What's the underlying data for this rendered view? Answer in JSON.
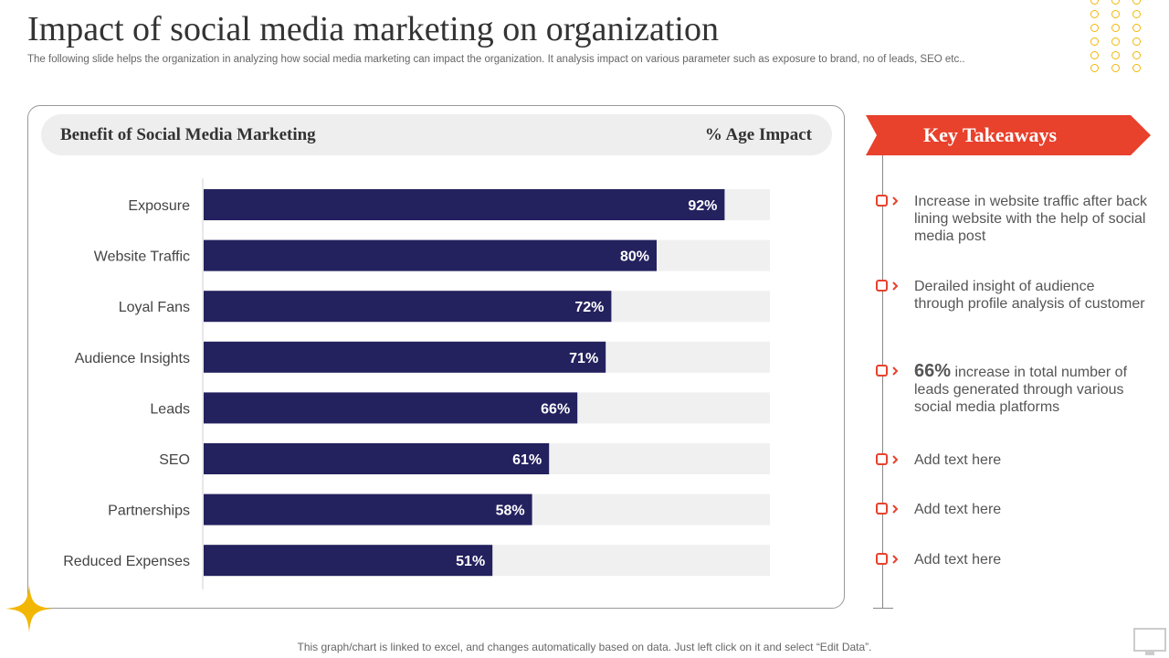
{
  "header": {
    "title": "Impact of social media marketing on organization",
    "subtitle": "The following slide helps the organization in analyzing how social media marketing can impact the organization. It analysis impact on various parameter such as exposure to brand, no of leads, SEO etc.."
  },
  "chart_header": {
    "left_label": "Benefit of Social Media Marketing",
    "right_label": "% Age Impact"
  },
  "chart_data": {
    "type": "bar",
    "orientation": "horizontal",
    "categories": [
      "Exposure",
      "Website Traffic",
      "Loyal Fans",
      "Audience Insights",
      "Leads",
      "SEO",
      "Partnerships",
      "Reduced Expenses"
    ],
    "values": [
      92,
      80,
      72,
      71,
      66,
      61,
      58,
      51
    ],
    "value_labels": [
      "92%",
      "80%",
      "72%",
      "71%",
      "66%",
      "61%",
      "58%",
      "51%"
    ],
    "xlim": [
      0,
      100
    ],
    "colors": {
      "bar": "#23215e",
      "track": "#f0f0f0",
      "label": "#ffffff"
    }
  },
  "takeaways": {
    "title": "Key Takeaways",
    "items": [
      {
        "text": "Increase  in website traffic after back lining website with the help of social media post"
      },
      {
        "text": "Derailed insight of audience through profile analysis of customer"
      },
      {
        "highlight": "66%",
        "text": " increase in total number of leads generated through various social media platforms"
      },
      {
        "text": "Add text here"
      },
      {
        "text": "Add text here"
      },
      {
        "text": "Add text here"
      }
    ]
  },
  "footer": {
    "note": "This graph/chart is linked to excel,  and changes automatically based on data. Just left click on it and select “Edit Data”."
  },
  "colors": {
    "accent_red": "#e8412c",
    "accent_yellow": "#f2b705",
    "bar_navy": "#23215e"
  }
}
